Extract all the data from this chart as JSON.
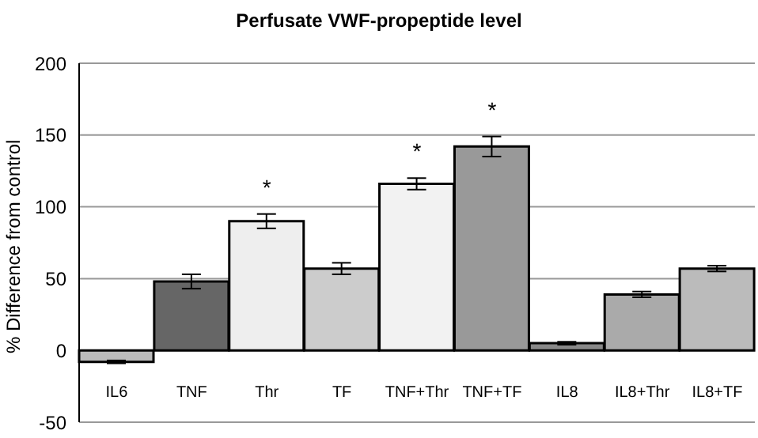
{
  "chart_data": {
    "type": "bar",
    "title": "Perfusate VWF-propeptide level",
    "ylabel": "% Difference from control",
    "categories": [
      "IL6",
      "TNF",
      "Thr",
      "TF",
      "TNF+Thr",
      "TNF+TF",
      "IL8",
      "IL8+Thr",
      "IL8+TF"
    ],
    "values": [
      -8,
      48,
      90,
      57,
      116,
      142,
      5,
      39,
      57
    ],
    "errors": [
      1,
      5,
      5,
      4,
      4,
      7,
      1,
      2,
      2
    ],
    "colors": [
      "#bbbbbb",
      "#666666",
      "#eeeeee",
      "#cccccc",
      "#f2f2f2",
      "#999999",
      "#888888",
      "#aaaaaa",
      "#bbbbbb"
    ],
    "ylim": [
      -50,
      200
    ],
    "yticks": [
      -50,
      0,
      50,
      100,
      150,
      200
    ],
    "grid": "y",
    "annotations": [
      {
        "text": "*",
        "x": "Thr",
        "y": 95
      },
      {
        "text": "*",
        "x": "TNF+Thr",
        "y": 120
      },
      {
        "text": "*",
        "x": "TNF+TF",
        "y": 149
      }
    ]
  }
}
